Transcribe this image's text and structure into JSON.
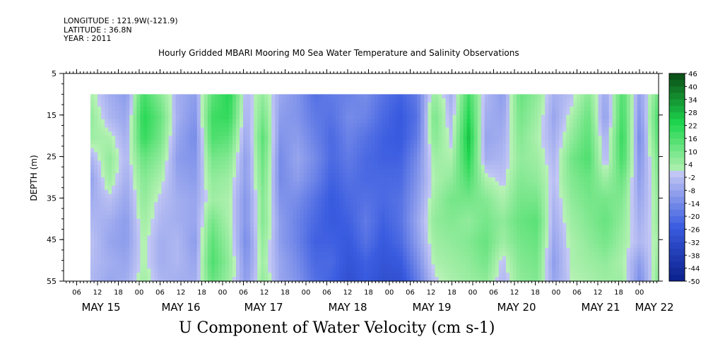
{
  "header": {
    "longitude": "LONGITUDE : 121.9W(-121.9)",
    "latitude": "LATITUDE : 36.8N",
    "year": "YEAR : 2011",
    "title": "Hourly Gridded MBARI Mooring M0 Sea Water Temperature and Salinity Observations"
  },
  "chart_data": {
    "type": "heatmap",
    "title": "U Component of Water Velocity (cm s-1)",
    "ylabel": "DEPTH (m)",
    "xlabel": "",
    "ylim": [
      55,
      5
    ],
    "y_ticks": [
      5,
      15,
      25,
      35,
      45,
      55
    ],
    "x_hour_ticks": [
      "06",
      "12",
      "18",
      "00",
      "06",
      "12",
      "18",
      "00",
      "06",
      "12",
      "18",
      "00",
      "06",
      "12",
      "18",
      "00",
      "06",
      "12",
      "18",
      "00",
      "06",
      "12",
      "18",
      "00",
      "06",
      "12",
      "18",
      "00",
      "06",
      "12",
      "18",
      "00"
    ],
    "x_day_labels": [
      "MAY 15",
      "MAY 16",
      "MAY 17",
      "MAY 18",
      "MAY 19",
      "MAY 20",
      "MAY 21",
      "MAY 22"
    ],
    "colorbar": {
      "ticks": [
        "46",
        "40",
        "34",
        "28",
        "22",
        "16",
        "10",
        "4",
        "-2",
        "-8",
        "-14",
        "-20",
        "-26",
        "-32",
        "-38",
        "-44",
        "-50"
      ],
      "min": -50,
      "max": 46,
      "step": 3,
      "colors": {
        "negative_low": "#0a1f8a",
        "negative_mid": "#3a5ce0",
        "negative_high": "#c4c8f4",
        "positive_low": "#b9f2b6",
        "positive_mid": "#1ed64e",
        "positive_high": "#0a4a14"
      }
    },
    "data_depth_range": [
      10,
      55
    ],
    "data_time_range": [
      "MAY 15 06",
      "MAY 22 01"
    ],
    "depth_levels": [
      10,
      15,
      20,
      25,
      30,
      35,
      40,
      45,
      50,
      55
    ],
    "column_profiles_cm_s": [
      [
        2,
        5,
        4,
        -4,
        -8,
        -6,
        -4,
        -2,
        -3,
        -4
      ],
      [
        -6,
        -4,
        2,
        6,
        4,
        -2,
        -6,
        -8,
        -6,
        -8
      ],
      [
        -10,
        -8,
        -6,
        -4,
        -6,
        -8,
        -10,
        -10,
        -8,
        -6
      ],
      [
        18,
        22,
        20,
        12,
        8,
        6,
        4,
        2,
        2,
        4
      ],
      [
        8,
        12,
        10,
        6,
        2,
        -2,
        -4,
        -6,
        -6,
        -4
      ],
      [
        -6,
        -6,
        -8,
        -10,
        -8,
        -6,
        -6,
        -4,
        -4,
        -6
      ],
      [
        -10,
        -12,
        -14,
        -12,
        -10,
        -8,
        -8,
        -10,
        -8,
        -6
      ],
      [
        14,
        18,
        16,
        10,
        6,
        4,
        10,
        14,
        16,
        12
      ],
      [
        22,
        20,
        14,
        8,
        4,
        2,
        2,
        4,
        6,
        4
      ],
      [
        -4,
        -6,
        -8,
        -10,
        -10,
        -12,
        -12,
        -14,
        -12,
        -10
      ],
      [
        6,
        10,
        14,
        12,
        10,
        8,
        8,
        6,
        4,
        6
      ],
      [
        -8,
        -10,
        -12,
        -14,
        -14,
        -12,
        -10,
        -10,
        -8,
        -8
      ],
      [
        -12,
        -12,
        -10,
        -8,
        -10,
        -14,
        -16,
        -16,
        -14,
        -12
      ],
      [
        -20,
        -18,
        -16,
        -14,
        -16,
        -20,
        -22,
        -24,
        -22,
        -20
      ],
      [
        -18,
        -20,
        -22,
        -22,
        -24,
        -26,
        -26,
        -24,
        -22,
        -24
      ],
      [
        -16,
        -14,
        -16,
        -18,
        -20,
        -22,
        -24,
        -26,
        -28,
        -30
      ],
      [
        -14,
        -16,
        -20,
        -22,
        -22,
        -20,
        -18,
        -20,
        -24,
        -26
      ],
      [
        -20,
        -22,
        -24,
        -24,
        -22,
        -22,
        -24,
        -26,
        -28,
        -30
      ],
      [
        -24,
        -26,
        -26,
        -24,
        -22,
        -20,
        -20,
        -22,
        -26,
        -30
      ],
      [
        -18,
        -20,
        -18,
        -14,
        -12,
        -10,
        -8,
        -10,
        -14,
        -18
      ],
      [
        6,
        10,
        8,
        4,
        2,
        4,
        6,
        4,
        2,
        -2
      ],
      [
        -6,
        -4,
        -2,
        2,
        6,
        10,
        8,
        6,
        4,
        2
      ],
      [
        18,
        22,
        26,
        22,
        16,
        10,
        6,
        8,
        6,
        4
      ],
      [
        -4,
        -6,
        -8,
        -6,
        2,
        8,
        10,
        12,
        10,
        6
      ],
      [
        -10,
        -8,
        -6,
        -4,
        -2,
        2,
        6,
        4,
        -2,
        -4
      ],
      [
        12,
        10,
        8,
        6,
        8,
        10,
        12,
        10,
        8,
        6
      ],
      [
        6,
        4,
        2,
        4,
        6,
        10,
        14,
        12,
        10,
        8
      ],
      [
        -6,
        -8,
        -6,
        -4,
        -2,
        -4,
        -6,
        -8,
        -10,
        -8
      ],
      [
        -2,
        2,
        6,
        10,
        8,
        6,
        4,
        2,
        2,
        0
      ],
      [
        8,
        12,
        14,
        16,
        12,
        10,
        8,
        6,
        4,
        2
      ],
      [
        -8,
        -10,
        -6,
        -4,
        4,
        10,
        12,
        10,
        6,
        4
      ],
      [
        16,
        18,
        20,
        18,
        12,
        8,
        6,
        4,
        2,
        4
      ],
      [
        -10,
        -12,
        -14,
        -12,
        -10,
        -8,
        -6,
        -4,
        -10,
        -14
      ],
      [
        10,
        14,
        12,
        8,
        6,
        4,
        4,
        2,
        4,
        6
      ]
    ]
  }
}
